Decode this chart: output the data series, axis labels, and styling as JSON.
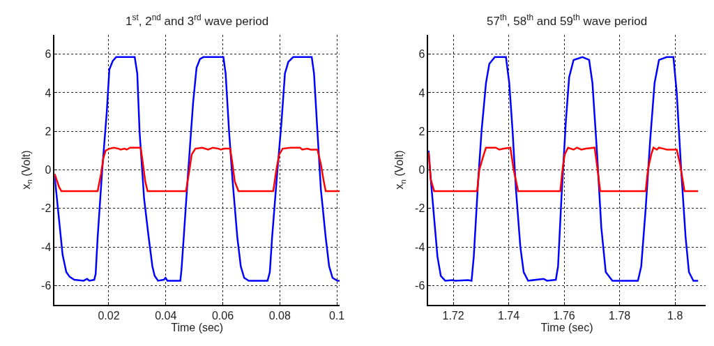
{
  "chart_data": [
    {
      "type": "line",
      "title": "1$^{st}$, 2$^{nd}$ and 3$^{rd}$ wave period",
      "xlabel": "Time (sec)",
      "ylabel": "x$_{n}$ (Volt)",
      "xlim": [
        0.001,
        0.101
      ],
      "xticks": [
        0.02,
        0.04,
        0.06,
        0.08,
        0.1
      ],
      "ylim": [
        -7,
        7
      ],
      "yticks": [
        -6,
        -4,
        -2,
        0,
        2,
        4,
        6
      ],
      "grid": true,
      "series": [
        {
          "color": "#0000ff",
          "x": [
            0.001,
            0.0038,
            0.0051,
            0.0063,
            0.0079,
            0.0112,
            0.0124,
            0.0132,
            0.0149,
            0.0154,
            0.0161,
            0.0177,
            0.0193,
            0.0202,
            0.0214,
            0.0226,
            0.0291,
            0.03,
            0.0308,
            0.0324,
            0.034,
            0.0353,
            0.0361,
            0.0373,
            0.0393,
            0.0399,
            0.0406,
            0.0451,
            0.0455,
            0.0463,
            0.0479,
            0.0496,
            0.0508,
            0.052,
            0.0532,
            0.0602,
            0.061,
            0.0622,
            0.0634,
            0.0651,
            0.0663,
            0.0675,
            0.0691,
            0.0757,
            0.0765,
            0.0773,
            0.0789,
            0.0806,
            0.0818,
            0.083,
            0.0847,
            0.0912,
            0.092,
            0.0932,
            0.0944,
            0.0961,
            0.0973,
            0.0985,
            0.1002,
            0.101
          ],
          "values": [
            -0.3,
            -4.4,
            -5.3,
            -5.55,
            -5.7,
            -5.75,
            -5.65,
            -5.75,
            -5.7,
            -5.4,
            -3.5,
            0,
            3,
            5.2,
            5.65,
            5.85,
            5.85,
            5,
            2,
            -1.5,
            -3.5,
            -5,
            -5.5,
            -5.75,
            -5.7,
            -5.6,
            -5.75,
            -5.75,
            -5.2,
            -3.5,
            0,
            3.5,
            5.3,
            5.75,
            5.85,
            5.85,
            5,
            2,
            -0.5,
            -3.5,
            -5,
            -5.6,
            -5.75,
            -5.75,
            -5.3,
            -3.5,
            -0.5,
            2.5,
            5,
            5.6,
            5.85,
            5.85,
            5,
            2,
            -1,
            -3.5,
            -5,
            -5.6,
            -5.75,
            -5.75
          ]
        },
        {
          "color": "#ff0000",
          "x": [
            0.001,
            0.0026,
            0.0034,
            0.0161,
            0.0173,
            0.0181,
            0.0189,
            0.0202,
            0.0218,
            0.0234,
            0.0242,
            0.0255,
            0.0263,
            0.0275,
            0.0312,
            0.032,
            0.0328,
            0.0336,
            0.0471,
            0.0483,
            0.0491,
            0.0504,
            0.0528,
            0.0549,
            0.0565,
            0.0585,
            0.0593,
            0.0606,
            0.0626,
            0.0634,
            0.0642,
            0.0655,
            0.0777,
            0.0789,
            0.0798,
            0.081,
            0.0838,
            0.0871,
            0.0879,
            0.0896,
            0.0908,
            0.0932,
            0.0944,
            0.0953,
            0.0961,
            0.101
          ],
          "values": [
            -0.2,
            -0.9,
            -1.1,
            -1.1,
            -0.2,
            0.6,
            1,
            1.1,
            1.15,
            1.1,
            1.05,
            1.1,
            1.05,
            1.15,
            1.15,
            0.3,
            -0.6,
            -1.1,
            -1.1,
            0,
            0.8,
            1.1,
            1.15,
            1.05,
            1.15,
            1.1,
            1.05,
            1.1,
            1.1,
            0.3,
            -0.6,
            -1.1,
            -1.1,
            0.1,
            0.8,
            1.1,
            1.15,
            1.15,
            1.05,
            1.1,
            1.05,
            1.05,
            0.3,
            -0.5,
            -1.1,
            -1.1
          ]
        }
      ]
    },
    {
      "type": "line",
      "title": "57$^{th}$, 58$^{th}$ and 59$^{th}$ wave period",
      "xlabel": "Time (sec)",
      "ylabel": "x$_{n}$ (Volt)",
      "xlim": [
        1.711,
        1.811
      ],
      "xticks": [
        1.72,
        1.74,
        1.76,
        1.78,
        1.8
      ],
      "ylim": [
        -7,
        7
      ],
      "yticks": [
        -6,
        -4,
        -2,
        0,
        2,
        4,
        6
      ],
      "grid": true,
      "series": [
        {
          "color": "#0000ff",
          "x": [
            1.7111,
            1.7119,
            1.7131,
            1.7143,
            1.7155,
            1.7171,
            1.7198,
            1.7206,
            1.7254,
            1.7266,
            1.7274,
            1.729,
            1.7302,
            1.7318,
            1.733,
            1.735,
            1.739,
            1.7402,
            1.7414,
            1.7426,
            1.7442,
            1.7454,
            1.747,
            1.7526,
            1.7538,
            1.757,
            1.7578,
            1.759,
            1.7606,
            1.7618,
            1.7634,
            1.7666,
            1.769,
            1.7702,
            1.7718,
            1.7734,
            1.775,
            1.7774,
            1.7866,
            1.7878,
            1.7894,
            1.791,
            1.7926,
            1.7942,
            1.797,
            1.7994,
            1.8006,
            1.8022,
            1.8038,
            1.805,
            1.8066,
            1.8083
          ],
          "values": [
            1,
            -0.5,
            -2.5,
            -4.5,
            -5.5,
            -5.75,
            -5.72,
            -5.75,
            -5.72,
            -5.75,
            -4.5,
            -0.5,
            2,
            4.5,
            5.5,
            5.85,
            5.85,
            4.5,
            2,
            -1,
            -4,
            -5.3,
            -5.75,
            -5.65,
            -5.75,
            -5.7,
            -5,
            -1.5,
            2.5,
            4.8,
            5.7,
            5.85,
            5.7,
            4.5,
            1,
            -3,
            -5.3,
            -5.75,
            -5.75,
            -5,
            -2,
            1.5,
            4.5,
            5.7,
            5.85,
            5.85,
            4,
            0,
            -3.5,
            -5.3,
            -5.75,
            -5.75
          ]
        },
        {
          "color": "#ff0000",
          "x": [
            1.7111,
            1.7119,
            1.7131,
            1.7286,
            1.7294,
            1.7306,
            1.7318,
            1.7354,
            1.7366,
            1.7382,
            1.7406,
            1.7418,
            1.7434,
            1.7586,
            1.7594,
            1.7602,
            1.7614,
            1.7634,
            1.7646,
            1.7662,
            1.7678,
            1.771,
            1.7718,
            1.773,
            1.7894,
            1.7902,
            1.7914,
            1.7922,
            1.7934,
            1.7942,
            1.7958,
            1.797,
            1.8006,
            1.8018,
            1.8034,
            1.8083
          ],
          "values": [
            0.9,
            -0.5,
            -1.1,
            -1.1,
            0,
            0.6,
            1.15,
            1.15,
            1.05,
            1.1,
            1.15,
            0,
            -1.1,
            -1.1,
            0,
            0.8,
            1.15,
            1.05,
            1.15,
            1.05,
            1.1,
            1.15,
            0.3,
            -1.1,
            -1.1,
            0,
            0.8,
            1.15,
            1.05,
            1.15,
            1.1,
            1.05,
            1.05,
            0.3,
            -1.1,
            -1.1
          ]
        }
      ]
    }
  ]
}
